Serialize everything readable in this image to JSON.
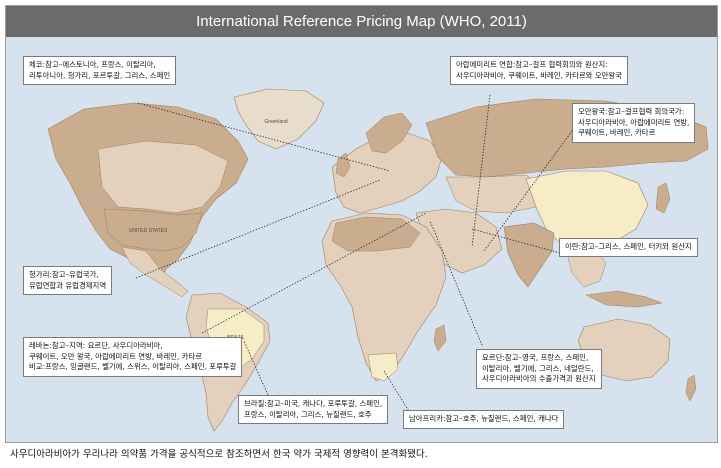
{
  "title": "International Reference Pricing Map (WHO, 2011)",
  "map_labels": {
    "usa": "UNITED STATES",
    "greenland": "Greenland",
    "brazil": "BRAZIL"
  },
  "callouts": {
    "czech": [
      "체코:참고–에스토니아, 프랑스, 이탈리아,",
      "리투아니아, 헝가리, 포르투갈, 그리스, 스페인"
    ],
    "uae": [
      "아랍에미리트 연합:참고–걸프 협력회의와 원산지:",
      "사우디아라비아, 쿠웨이트, 바레인, 카타르와 오만왕국"
    ],
    "oman": [
      "오만왕국:참고–걸프협력 회의국가:",
      "사우디아라비아, 아랍에미리트 연방,",
      "쿠웨이트, 바레인, 카타르"
    ],
    "iran": [
      "이란:참고–그리스, 스페인, 터키와 원산지"
    ],
    "hungary": [
      "헝가리:참고–유럽국가,",
      "유럽연합과 유럽경제지역"
    ],
    "lebanon": [
      "레바논:참고–지역: 요르단, 사우디아라비아,",
      "쿠웨이트, 오만 왕국, 아랍에미리트 연방, 바레인, 카타르",
      "비교:프랑스, 잉글랜드, 벨기에, 스위스, 이탈리아, 스페인, 포루투갈"
    ],
    "jordan": [
      "요르단:참고–영국, 프랑스, 스페인,",
      "이탈리아, 벨기에, 그리스, 네덜란드,",
      "사우디아라비아의 수출가격과 원산지"
    ],
    "brazil": [
      "브라질:참고–미국, 캐나다, 포루투갈, 스페인,",
      "프랑스, 이탈리아, 그리스, 뉴질랜드, 호주"
    ],
    "south_africa": [
      "남아프리카:참고–호주, 뉴질랜드, 스페인, 캐나다"
    ]
  },
  "caption": "사우디아라비아가 우리나라 의약품 가격을 공식적으로 참조하면서 한국 약가 국제적 영향력이 본격화됐다.",
  "colors": {
    "ocean": "#d6e3ef",
    "land": "#e3d1bd",
    "land_dark": "#c9ad8e",
    "highlight": "#f6ecc8",
    "title_bar": "#6b6b6b",
    "border": "#a08060"
  }
}
